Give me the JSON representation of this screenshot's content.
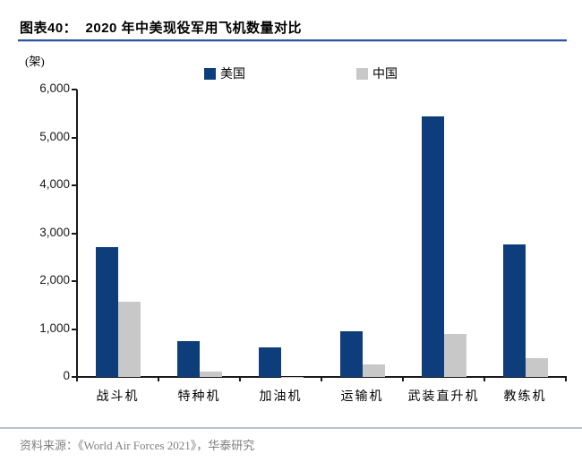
{
  "header": {
    "title": "图表40：  2020 年中美现役军用飞机数量对比"
  },
  "chart_data": {
    "type": "bar",
    "title": "2020 年中美现役军用飞机数量对比",
    "unit_label": "(架)",
    "categories": [
      "战斗机",
      "特种机",
      "加油机",
      "运输机",
      "武装直升机",
      "教练机"
    ],
    "series": [
      {
        "name": "美国",
        "color": "#0e3d7c",
        "values": [
          2717,
          745,
          625,
          945,
          5434,
          2761
        ]
      },
      {
        "name": "中国",
        "color": "#c8c8c8",
        "values": [
          1571,
          114,
          3,
          264,
          902,
          400
        ]
      }
    ],
    "ylim": [
      0,
      6000
    ],
    "ytick_step": 1000,
    "yticks": [
      "0",
      "1,000",
      "2,000",
      "3,000",
      "4,000",
      "5,000",
      "6,000"
    ],
    "grid": false,
    "legend_position": "top"
  },
  "footer": {
    "source": "资料来源：《World Air Forces 2021》，华泰研究"
  },
  "colors": {
    "us_bar": "#0e3d7c",
    "cn_bar": "#c8c8c8",
    "title_rule": "#2d55a0",
    "footer_rule": "#b7c3d6",
    "axis": "#1a1a1a",
    "source_text": "#808080"
  }
}
